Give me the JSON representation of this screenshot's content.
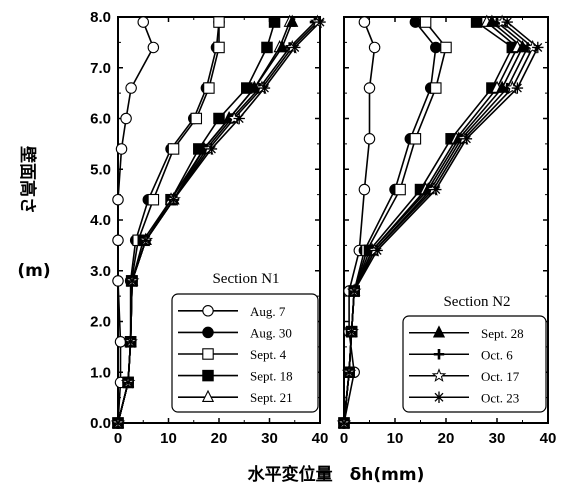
{
  "chart_data": {
    "type": "line",
    "ylabel": "壁面高さ",
    "ylabel_unit": "(m)",
    "xlabel": "水平変位量　δh(mm)",
    "ylim": [
      0,
      8
    ],
    "xlim": [
      0,
      40
    ],
    "y_ticks": [
      "0.0",
      "1.0",
      "2.0",
      "3.0",
      "4.0",
      "5.0",
      "6.0",
      "7.0",
      "8.0"
    ],
    "x_ticks": [
      "0",
      "10",
      "20",
      "30",
      "40"
    ],
    "panels": [
      {
        "title": "Section N1",
        "series": [
          {
            "name": "Aug. 7",
            "marker": "circle-open",
            "points": [
              [
                0,
                0
              ],
              [
                0.5,
                0.8
              ],
              [
                0.5,
                1.6
              ],
              [
                0,
                2.8
              ],
              [
                0,
                3.6
              ],
              [
                0,
                4.4
              ],
              [
                0.7,
                5.4
              ],
              [
                1.6,
                6.0
              ],
              [
                2.6,
                6.6
              ],
              [
                7,
                7.4
              ],
              [
                5,
                7.9
              ]
            ]
          },
          {
            "name": "Aug. 30",
            "marker": "circle-filled",
            "points": [
              [
                0,
                0
              ],
              [
                2,
                0.8
              ],
              [
                2.5,
                1.6
              ],
              [
                2.5,
                2.8
              ],
              [
                3.5,
                3.6
              ],
              [
                6,
                4.4
              ],
              [
                10.5,
                5.4
              ],
              [
                15,
                6.0
              ],
              [
                17.5,
                6.6
              ],
              [
                19.5,
                7.4
              ],
              [
                20,
                7.9
              ]
            ]
          },
          {
            "name": "Sept. 4",
            "marker": "square-open",
            "points": [
              [
                0,
                0
              ],
              [
                2,
                0.8
              ],
              [
                2.5,
                1.6
              ],
              [
                2.7,
                2.8
              ],
              [
                4,
                3.6
              ],
              [
                7,
                4.4
              ],
              [
                11,
                5.4
              ],
              [
                15.5,
                6.0
              ],
              [
                18,
                6.6
              ],
              [
                20,
                7.4
              ],
              [
                20,
                7.9
              ]
            ]
          },
          {
            "name": "Sept. 18",
            "marker": "square-filled",
            "points": [
              [
                0,
                0
              ],
              [
                2,
                0.8
              ],
              [
                2.5,
                1.6
              ],
              [
                2.8,
                2.8
              ],
              [
                5,
                3.6
              ],
              [
                10.5,
                4.4
              ],
              [
                16,
                5.4
              ],
              [
                20,
                6.0
              ],
              [
                25.5,
                6.6
              ],
              [
                29.5,
                7.4
              ],
              [
                31,
                7.9
              ]
            ]
          },
          {
            "name": "Sept. 21",
            "marker": "triangle-open",
            "points": [
              [
                0,
                0
              ],
              [
                2,
                0.8
              ],
              [
                2.5,
                1.6
              ],
              [
                2.8,
                2.8
              ],
              [
                5.5,
                3.6
              ],
              [
                10.5,
                4.4
              ],
              [
                17,
                5.4
              ],
              [
                22,
                6.0
              ],
              [
                27,
                6.6
              ],
              [
                32,
                7.4
              ],
              [
                34,
                7.9
              ]
            ]
          },
          {
            "name": "Sept. 28",
            "marker": "triangle-filled",
            "points": [
              [
                0,
                0
              ],
              [
                2,
                0.8
              ],
              [
                2.5,
                1.6
              ],
              [
                2.8,
                2.8
              ],
              [
                5.5,
                3.6
              ],
              [
                11,
                4.4
              ],
              [
                17,
                5.4
              ],
              [
                22,
                6.0
              ],
              [
                27,
                6.6
              ],
              [
                32.5,
                7.4
              ],
              [
                34.5,
                7.9
              ]
            ]
          },
          {
            "name": "Oct. 6",
            "marker": "plus",
            "points": [
              [
                0,
                0
              ],
              [
                2,
                0.8
              ],
              [
                2.5,
                1.6
              ],
              [
                2.8,
                2.8
              ],
              [
                5.5,
                3.6
              ],
              [
                11,
                4.4
              ],
              [
                17.5,
                5.4
              ],
              [
                22.5,
                6.0
              ],
              [
                28,
                6.6
              ],
              [
                34,
                7.4
              ],
              [
                39,
                7.9
              ]
            ]
          },
          {
            "name": "Oct. 17",
            "marker": "star",
            "points": [
              [
                0,
                0
              ],
              [
                2,
                0.8
              ],
              [
                2.5,
                1.6
              ],
              [
                2.8,
                2.8
              ],
              [
                5.5,
                3.6
              ],
              [
                11,
                4.4
              ],
              [
                18,
                5.4
              ],
              [
                23,
                6.0
              ],
              [
                28.5,
                6.6
              ],
              [
                34.5,
                7.4
              ],
              [
                39.5,
                7.9
              ]
            ]
          },
          {
            "name": "Oct. 23",
            "marker": "asterisk",
            "points": [
              [
                0,
                0
              ],
              [
                2,
                0.8
              ],
              [
                2.5,
                1.6
              ],
              [
                2.8,
                2.8
              ],
              [
                5.5,
                3.6
              ],
              [
                11,
                4.4
              ],
              [
                18.5,
                5.4
              ],
              [
                24,
                6.0
              ],
              [
                29,
                6.6
              ],
              [
                35,
                7.4
              ],
              [
                40,
                7.9
              ]
            ]
          }
        ],
        "legend": {
          "placement": "lower-right",
          "entries": [
            "Aug. 7",
            "Aug. 30",
            "Sept. 4",
            "Sept. 18",
            "Sept. 21"
          ]
        }
      },
      {
        "title": "Section N2",
        "series": [
          {
            "name": "Aug. 7",
            "marker": "circle-open",
            "points": [
              [
                0,
                0
              ],
              [
                2,
                1.0
              ],
              [
                1,
                1.8
              ],
              [
                1,
                2.6
              ],
              [
                3,
                3.4
              ],
              [
                4,
                4.6
              ],
              [
                5,
                5.6
              ],
              [
                5,
                6.6
              ],
              [
                6,
                7.4
              ],
              [
                4,
                7.9
              ]
            ]
          },
          {
            "name": "Aug. 30",
            "marker": "circle-filled",
            "points": [
              [
                0,
                0
              ],
              [
                1,
                1.0
              ],
              [
                1.5,
                1.8
              ],
              [
                2,
                2.6
              ],
              [
                4,
                3.4
              ],
              [
                10,
                4.6
              ],
              [
                13,
                5.6
              ],
              [
                17,
                6.6
              ],
              [
                18,
                7.4
              ],
              [
                14,
                7.9
              ]
            ]
          },
          {
            "name": "Sept. 4",
            "marker": "square-open",
            "points": [
              [
                0,
                0
              ],
              [
                1,
                1.0
              ],
              [
                1.5,
                1.8
              ],
              [
                2,
                2.6
              ],
              [
                4.5,
                3.4
              ],
              [
                11,
                4.6
              ],
              [
                14,
                5.6
              ],
              [
                18,
                6.6
              ],
              [
                20,
                7.4
              ],
              [
                16,
                7.9
              ]
            ]
          },
          {
            "name": "Sept. 18",
            "marker": "square-filled",
            "points": [
              [
                0,
                0
              ],
              [
                1,
                1.0
              ],
              [
                1.5,
                1.8
              ],
              [
                2,
                2.6
              ],
              [
                5,
                3.4
              ],
              [
                15,
                4.6
              ],
              [
                21,
                5.6
              ],
              [
                29,
                6.6
              ],
              [
                33,
                7.4
              ],
              [
                26,
                7.9
              ]
            ]
          },
          {
            "name": "Sept. 21",
            "marker": "triangle-open",
            "points": [
              [
                0,
                0
              ],
              [
                1,
                1.0
              ],
              [
                1.5,
                1.8
              ],
              [
                2,
                2.6
              ],
              [
                5.5,
                3.4
              ],
              [
                16,
                4.6
              ],
              [
                22,
                5.6
              ],
              [
                30,
                6.6
              ],
              [
                34,
                7.4
              ],
              [
                28,
                7.9
              ]
            ]
          },
          {
            "name": "Sept. 28",
            "marker": "triangle-filled",
            "points": [
              [
                0,
                0
              ],
              [
                1,
                1.0
              ],
              [
                1.5,
                1.8
              ],
              [
                2,
                2.6
              ],
              [
                5.5,
                3.4
              ],
              [
                16.5,
                4.6
              ],
              [
                22.5,
                5.6
              ],
              [
                31,
                6.6
              ],
              [
                35,
                7.4
              ],
              [
                29,
                7.9
              ]
            ]
          },
          {
            "name": "Oct. 6",
            "marker": "plus",
            "points": [
              [
                0,
                0
              ],
              [
                1,
                1.0
              ],
              [
                1.5,
                1.8
              ],
              [
                2,
                2.6
              ],
              [
                6,
                3.4
              ],
              [
                17,
                4.6
              ],
              [
                23,
                5.6
              ],
              [
                32,
                6.6
              ],
              [
                36,
                7.4
              ],
              [
                30,
                7.9
              ]
            ]
          },
          {
            "name": "Oct. 17",
            "marker": "star",
            "points": [
              [
                0,
                0
              ],
              [
                1,
                1.0
              ],
              [
                1.5,
                1.8
              ],
              [
                2,
                2.6
              ],
              [
                6,
                3.4
              ],
              [
                17.5,
                4.6
              ],
              [
                23.5,
                5.6
              ],
              [
                33,
                6.6
              ],
              [
                37,
                7.4
              ],
              [
                31,
                7.9
              ]
            ]
          },
          {
            "name": "Oct. 23",
            "marker": "asterisk",
            "points": [
              [
                0,
                0
              ],
              [
                1,
                1.0
              ],
              [
                1.5,
                1.8
              ],
              [
                2,
                2.6
              ],
              [
                6.5,
                3.4
              ],
              [
                18,
                4.6
              ],
              [
                24,
                5.6
              ],
              [
                34,
                6.6
              ],
              [
                38,
                7.4
              ],
              [
                32,
                7.9
              ]
            ]
          }
        ],
        "legend": {
          "placement": "lower-right",
          "entries": [
            "Sept. 28",
            "Oct. 6",
            "Oct. 17",
            "Oct. 23"
          ]
        }
      }
    ]
  }
}
